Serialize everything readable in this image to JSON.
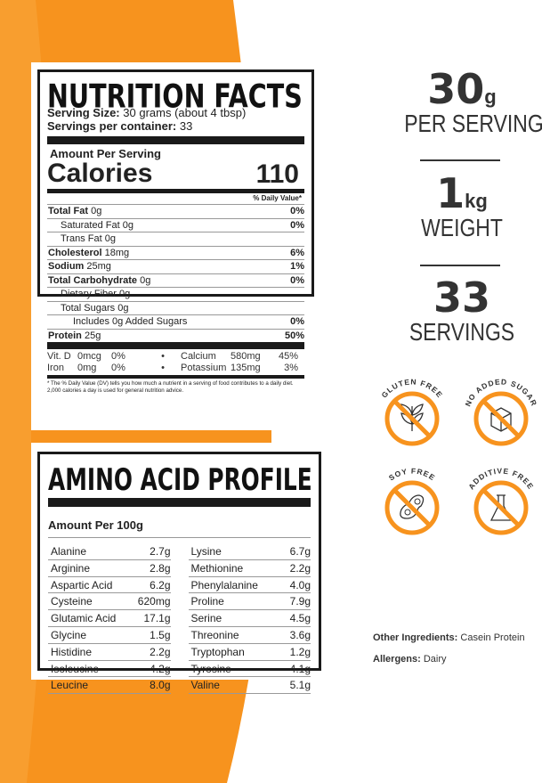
{
  "colors": {
    "orange": "#f7931e",
    "text": "#222222"
  },
  "nutrition": {
    "title": "NUTRITION FACTS",
    "serving_size_label": "Serving Size:",
    "serving_size": "30 grams (about 4 tbsp)",
    "servings_label": "Servings per container:",
    "servings": "33",
    "amount_per_serving": "Amount Per Serving",
    "calories_label": "Calories",
    "calories": "110",
    "dv_header": "% Daily Value*",
    "rows": [
      {
        "name": "Total Fat",
        "amount": "0g",
        "dv": "0%",
        "bold": true,
        "indent": 0
      },
      {
        "name": "Saturated Fat",
        "amount": "0g",
        "dv": "0%",
        "bold": false,
        "indent": 1
      },
      {
        "name": "Trans Fat",
        "amount": "0g",
        "dv": "",
        "bold": false,
        "indent": 1
      },
      {
        "name": "Cholesterol",
        "amount": "18mg",
        "dv": "6%",
        "bold": true,
        "indent": 0
      },
      {
        "name": "Sodium",
        "amount": "25mg",
        "dv": "1%",
        "bold": true,
        "indent": 0
      },
      {
        "name": "Total Carbohydrate",
        "amount": "0g",
        "dv": "0%",
        "bold": true,
        "indent": 0
      },
      {
        "name": "Dietary Fiber",
        "amount": "0g",
        "dv": "",
        "bold": false,
        "indent": 1
      },
      {
        "name": "Total Sugars",
        "amount": "0g",
        "dv": "",
        "bold": false,
        "indent": 1
      },
      {
        "name": "Includes 0g Added Sugars",
        "amount": "",
        "dv": "0%",
        "bold": false,
        "indent": 2
      },
      {
        "name": "Protein",
        "amount": "25g",
        "dv": "50%",
        "bold": true,
        "indent": 0
      }
    ],
    "minerals": [
      {
        "a": "Vit. D",
        "a_amt": "0mcg",
        "a_dv": "0%",
        "b": "Calcium",
        "b_amt": "580mg",
        "b_dv": "45%"
      },
      {
        "a": "Iron",
        "a_amt": "0mg",
        "a_dv": "0%",
        "b": "Potassium",
        "b_amt": "135mg",
        "b_dv": "3%"
      }
    ],
    "footnote": "* The % Daily Value (DV) tells you how much a nutrient in a serving of food contributes to a daily diet. 2,000 calories a day is used for general nutrition advice."
  },
  "amino": {
    "title": "AMINO ACID PROFILE",
    "subtitle": "Amount Per 100g",
    "left": [
      [
        "Alanine",
        "2.7g"
      ],
      [
        "Arginine",
        "2.8g"
      ],
      [
        "Aspartic Acid",
        "6.2g"
      ],
      [
        "Cysteine",
        "620mg"
      ],
      [
        "Glutamic Acid",
        "17.1g"
      ],
      [
        "Glycine",
        "1.5g"
      ],
      [
        "Histidine",
        "2.2g"
      ],
      [
        "Isoleucine",
        "4.2g"
      ],
      [
        "Leucine",
        "8.0g"
      ]
    ],
    "right": [
      [
        "Lysine",
        "6.7g"
      ],
      [
        "Methionine",
        "2.2g"
      ],
      [
        "Phenylalanine",
        "4.0g"
      ],
      [
        "Proline",
        "7.9g"
      ],
      [
        "Serine",
        "4.5g"
      ],
      [
        "Threonine",
        "3.6g"
      ],
      [
        "Tryptophan",
        "1.2g"
      ],
      [
        "Tyrosine",
        "4.1g"
      ],
      [
        "Valine",
        "5.1g"
      ]
    ]
  },
  "stats": [
    {
      "value": "30",
      "unit": "g",
      "label": "PER SERVING"
    },
    {
      "value": "1",
      "unit": "kg",
      "label": "WEIGHT"
    },
    {
      "value": "33",
      "unit": "",
      "label": "SERVINGS"
    }
  ],
  "badges": [
    {
      "label": "GLUTEN FREE",
      "icon": "wheat-icon"
    },
    {
      "label": "NO ADDED SUGAR",
      "icon": "sugar-cube-icon"
    },
    {
      "label": "SOY FREE",
      "icon": "soybean-icon"
    },
    {
      "label": "ADDITIVE FREE",
      "icon": "flask-icon"
    }
  ],
  "ingredients": {
    "other_label": "Other Ingredients:",
    "other": "Casein Protein",
    "allergens_label": "Allergens:",
    "allergens": "Dairy"
  }
}
